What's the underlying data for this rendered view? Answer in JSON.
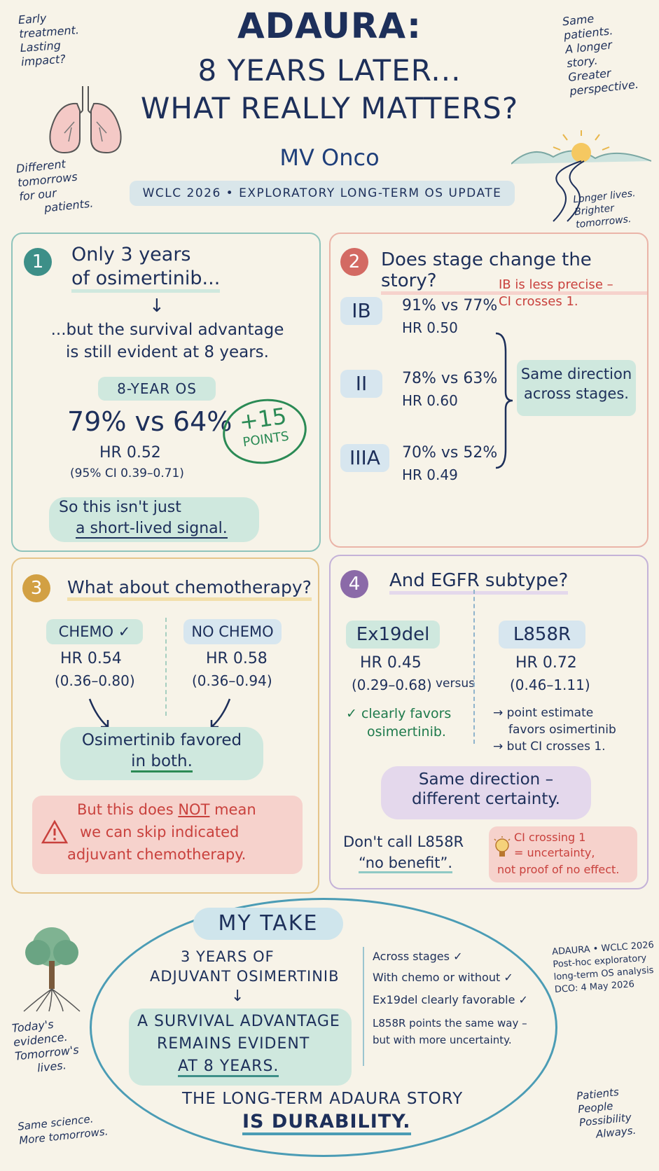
{
  "corner_notes": {
    "top_left": [
      "Early",
      "treatment.",
      "Lasting",
      "impact?"
    ],
    "mid_left": [
      "Different",
      "tomorrows",
      "for our",
      "patients."
    ],
    "top_right": [
      "Same",
      "patients.",
      "A longer",
      "story.",
      "Greater",
      "perspective."
    ],
    "mid_right": [
      "Longer lives.",
      "Brighter tomorrows."
    ],
    "bottom_left_1": [
      "Today's",
      "evidence.",
      "Tomorrow's",
      "lives."
    ],
    "bottom_left_2": [
      "Same science.",
      "More tomorrows."
    ],
    "bottom_right_1": [
      "ADAURA • WCLC 2026",
      "Post-hoc exploratory",
      "long-term OS analysis",
      "DCO: 4 May 2026"
    ],
    "bottom_right_2": [
      "Patients",
      "People",
      "Possibility",
      "Always."
    ]
  },
  "header": {
    "title_line1": "ADAURA:",
    "title_line2": "8 YEARS LATER...",
    "title_line3": "WHAT REALLY MATTERS?",
    "brand": "MV Onco",
    "banner": "WCLC 2026 • EXPLORATORY LONG-TERM OS UPDATE"
  },
  "panel1": {
    "number": "1",
    "heading_line1": "Only 3 years",
    "heading_line2": "of osimertinib...",
    "arrow": "↓",
    "sub_line1": "...but the survival advantage",
    "sub_line2": "is still evident at 8 years.",
    "os_label": "8-YEAR OS",
    "os_value": "79% vs 64%",
    "hr": "HR 0.52",
    "ci": "(95% CI 0.39–0.71)",
    "stamp_line1": "+15",
    "stamp_line2": "POINTS",
    "conclusion_line1": "So this isn't just",
    "conclusion_line2": "a short-lived signal."
  },
  "panel2": {
    "number": "2",
    "heading": "Does stage change the story?",
    "stages": [
      {
        "stage": "IB",
        "os": "91% vs 77%",
        "hr": "HR 0.50"
      },
      {
        "stage": "II",
        "os": "78% vs 63%",
        "hr": "HR 0.60"
      },
      {
        "stage": "IIIA",
        "os": "70% vs 52%",
        "hr": "HR 0.49"
      }
    ],
    "note_line1": "IB is less precise –",
    "note_line2": "CI crosses 1.",
    "summary_line1": "Same direction",
    "summary_line2": "across stages."
  },
  "panel3": {
    "number": "3",
    "heading": "What about chemotherapy?",
    "left_label": "CHEMO ✓",
    "left_hr": "HR 0.54",
    "left_ci": "(0.36–0.80)",
    "right_label": "NO CHEMO",
    "right_hr": "HR 0.58",
    "right_ci": "(0.36–0.94)",
    "conclusion_line1": "Osimertinib favored",
    "conclusion_line2": "in both.",
    "warning_line1_a": "But this does ",
    "warning_line1_b": "NOT",
    "warning_line1_c": " mean",
    "warning_line2": "we can skip indicated",
    "warning_line3": "adjuvant chemotherapy."
  },
  "panel4": {
    "number": "4",
    "heading": "And EGFR subtype?",
    "left_label": "Ex19del",
    "left_hr": "HR 0.45",
    "left_ci": "(0.29–0.68)",
    "left_note_line1": "✓ clearly favors",
    "left_note_line2": "osimertinib.",
    "versus": "versus",
    "right_label": "L858R",
    "right_hr": "HR 0.72",
    "right_ci": "(0.46–1.11)",
    "right_note_line1": "→ point estimate",
    "right_note_line2": "favors osimertinib",
    "right_note_line3": "→ but CI crosses 1.",
    "summary_line1": "Same direction –",
    "summary_line2": "different certainty.",
    "dont_line1": "Don't call L858R",
    "dont_line2": "“no benefit”.",
    "tip_line1": "CI crossing 1",
    "tip_line2": "= uncertainty,",
    "tip_line3": "not proof of no effect."
  },
  "my_take": {
    "title": "MY TAKE",
    "left_line1": "3 YEARS OF",
    "left_line2": "ADJUVANT OSIMERTINIB",
    "arrow": "↓",
    "left_line3": "A SURVIVAL ADVANTAGE",
    "left_line4": "REMAINS EVIDENT",
    "left_line5": "AT 8 YEARS.",
    "checks": [
      "Across stages ✓",
      "With chemo or without ✓",
      "Ex19del clearly favorable ✓"
    ],
    "l858_line1": "L858R points the same way –",
    "l858_line2": "but with more uncertainty.",
    "footer_line1": "THE LONG-TERM ADAURA STORY",
    "footer_line2": "IS DURABILITY."
  },
  "colors": {
    "ink": "#1d2f5a",
    "teal": "#3d8f88",
    "coral": "#d36a63",
    "gold": "#d2a043",
    "purple": "#8b6aa8",
    "green": "#2b8a55",
    "red": "#c9413d"
  },
  "icons": [
    "lungs-icon",
    "sunrise-road-icon",
    "tree-icon",
    "warning-icon",
    "lightbulb-icon"
  ]
}
